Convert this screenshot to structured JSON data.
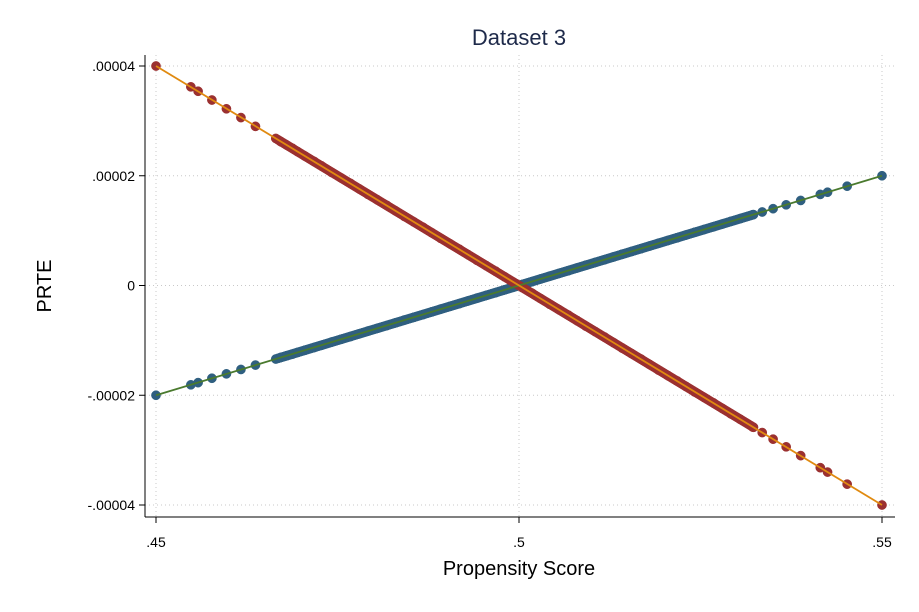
{
  "chart_data": {
    "type": "scatter",
    "title": "Dataset 3",
    "xlabel": "Propensity Score",
    "ylabel": "PRTE",
    "xlim": [
      0.45,
      0.55
    ],
    "ylim": [
      -4e-05,
      4e-05
    ],
    "x_ticks": [
      {
        "value": 0.45,
        "label": ".45"
      },
      {
        "value": 0.5,
        "label": ".5"
      },
      {
        "value": 0.55,
        "label": ".55"
      }
    ],
    "y_ticks": [
      {
        "value": 4e-05,
        "label": ".00004"
      },
      {
        "value": 2e-05,
        "label": ".00002"
      },
      {
        "value": 0,
        "label": "0"
      },
      {
        "value": -2e-05,
        "label": "-.00002"
      },
      {
        "value": -4e-05,
        "label": "-.00004"
      }
    ],
    "grid": true,
    "legend": "none",
    "series": [
      {
        "marker_color": "#2f5f80",
        "line_color": "#4a7a2e",
        "slope": 0.0004,
        "x": [
          0.45,
          0.4548,
          0.4558,
          0.4577,
          0.4597,
          0.4617,
          0.4637,
          0.4665,
          0.4672,
          0.468,
          0.4688,
          0.4695,
          0.4705,
          0.4718,
          0.4728,
          0.4742,
          0.4755,
          0.4768,
          0.478,
          0.4792,
          0.4805,
          0.4818,
          0.483,
          0.4842,
          0.4855,
          0.4868,
          0.488,
          0.4892,
          0.4905,
          0.4918,
          0.493,
          0.4942,
          0.4955,
          0.4968,
          0.498,
          0.4992,
          0.5005,
          0.5018,
          0.503,
          0.5042,
          0.5055,
          0.5068,
          0.508,
          0.5092,
          0.5105,
          0.5118,
          0.513,
          0.5142,
          0.5155,
          0.5168,
          0.518,
          0.5192,
          0.5205,
          0.5218,
          0.523,
          0.5242,
          0.5255,
          0.5268,
          0.528,
          0.5292,
          0.5305,
          0.5322,
          0.5335,
          0.535,
          0.5368,
          0.5388,
          0.5415,
          0.5425,
          0.5452,
          0.55
        ],
        "y": [
          -2e-05,
          -1.81e-05,
          -1.77e-05,
          -1.69e-05,
          -1.61e-05,
          -1.53e-05,
          -1.45e-05,
          -1.34e-05,
          -1.31e-05,
          -1.28e-05,
          -1.25e-05,
          -1.22e-05,
          -1.18e-05,
          -1.13e-05,
          -1.09e-05,
          -1.03e-05,
          -9.8e-06,
          -9.3e-06,
          -8.8e-06,
          -8.3e-06,
          -7.8e-06,
          -7.3e-06,
          -6.8e-06,
          -6.3e-06,
          -5.8e-06,
          -5.3e-06,
          -4.8e-06,
          -4.3e-06,
          -3.8e-06,
          -3.3e-06,
          -2.8e-06,
          -2.3e-06,
          -1.8e-06,
          -1.3e-06,
          -8e-07,
          -3e-07,
          2e-07,
          7e-07,
          1.2e-06,
          1.7e-06,
          2.2e-06,
          2.7e-06,
          3.2e-06,
          3.7e-06,
          4.2e-06,
          4.7e-06,
          5.2e-06,
          5.7e-06,
          6.2e-06,
          6.7e-06,
          7.2e-06,
          7.7e-06,
          8.2e-06,
          8.7e-06,
          9.2e-06,
          9.7e-06,
          1.02e-05,
          1.07e-05,
          1.12e-05,
          1.17e-05,
          1.22e-05,
          1.29e-05,
          1.34e-05,
          1.4e-05,
          1.47e-05,
          1.55e-05,
          1.66e-05,
          1.7e-05,
          1.81e-05,
          2e-05
        ]
      },
      {
        "marker_color": "#9b3030",
        "line_color": "#e08a10",
        "slope": -0.0008,
        "x": [
          0.45,
          0.4548,
          0.4558,
          0.4577,
          0.4597,
          0.4617,
          0.4637,
          0.4665,
          0.4672,
          0.468,
          0.4688,
          0.4695,
          0.4705,
          0.4718,
          0.4728,
          0.4742,
          0.4755,
          0.4768,
          0.478,
          0.4792,
          0.4805,
          0.4818,
          0.483,
          0.4842,
          0.4855,
          0.4868,
          0.488,
          0.4892,
          0.4905,
          0.4918,
          0.493,
          0.4942,
          0.4955,
          0.4968,
          0.498,
          0.4992,
          0.5005,
          0.5018,
          0.503,
          0.5042,
          0.5055,
          0.5068,
          0.508,
          0.5092,
          0.5105,
          0.5118,
          0.513,
          0.5142,
          0.5155,
          0.5168,
          0.518,
          0.5192,
          0.5205,
          0.5218,
          0.523,
          0.5242,
          0.5255,
          0.5268,
          0.528,
          0.5292,
          0.5305,
          0.5322,
          0.5335,
          0.535,
          0.5368,
          0.5388,
          0.5415,
          0.5425,
          0.5452,
          0.55
        ],
        "y": [
          4e-05,
          3.62e-05,
          3.54e-05,
          3.38e-05,
          3.22e-05,
          3.06e-05,
          2.9e-05,
          2.68e-05,
          2.62e-05,
          2.56e-05,
          2.5e-05,
          2.44e-05,
          2.36e-05,
          2.26e-05,
          2.18e-05,
          2.06e-05,
          1.96e-05,
          1.86e-05,
          1.76e-05,
          1.66e-05,
          1.56e-05,
          1.46e-05,
          1.36e-05,
          1.26e-05,
          1.16e-05,
          1.06e-05,
          9.6e-06,
          8.6e-06,
          7.6e-06,
          6.6e-06,
          5.6e-06,
          4.6e-06,
          3.6e-06,
          2.6e-06,
          1.6e-06,
          6e-07,
          -4e-07,
          -1.4e-06,
          -2.4e-06,
          -3.4e-06,
          -4.4e-06,
          -5.4e-06,
          -6.4e-06,
          -7.4e-06,
          -8.4e-06,
          -9.4e-06,
          -1.04e-05,
          -1.14e-05,
          -1.24e-05,
          -1.34e-05,
          -1.44e-05,
          -1.54e-05,
          -1.64e-05,
          -1.74e-05,
          -1.84e-05,
          -1.94e-05,
          -2.04e-05,
          -2.14e-05,
          -2.24e-05,
          -2.34e-05,
          -2.44e-05,
          -2.58e-05,
          -2.68e-05,
          -2.8e-05,
          -2.94e-05,
          -3.1e-05,
          -3.32e-05,
          -3.4e-05,
          -3.62e-05,
          -4e-05
        ]
      }
    ]
  }
}
